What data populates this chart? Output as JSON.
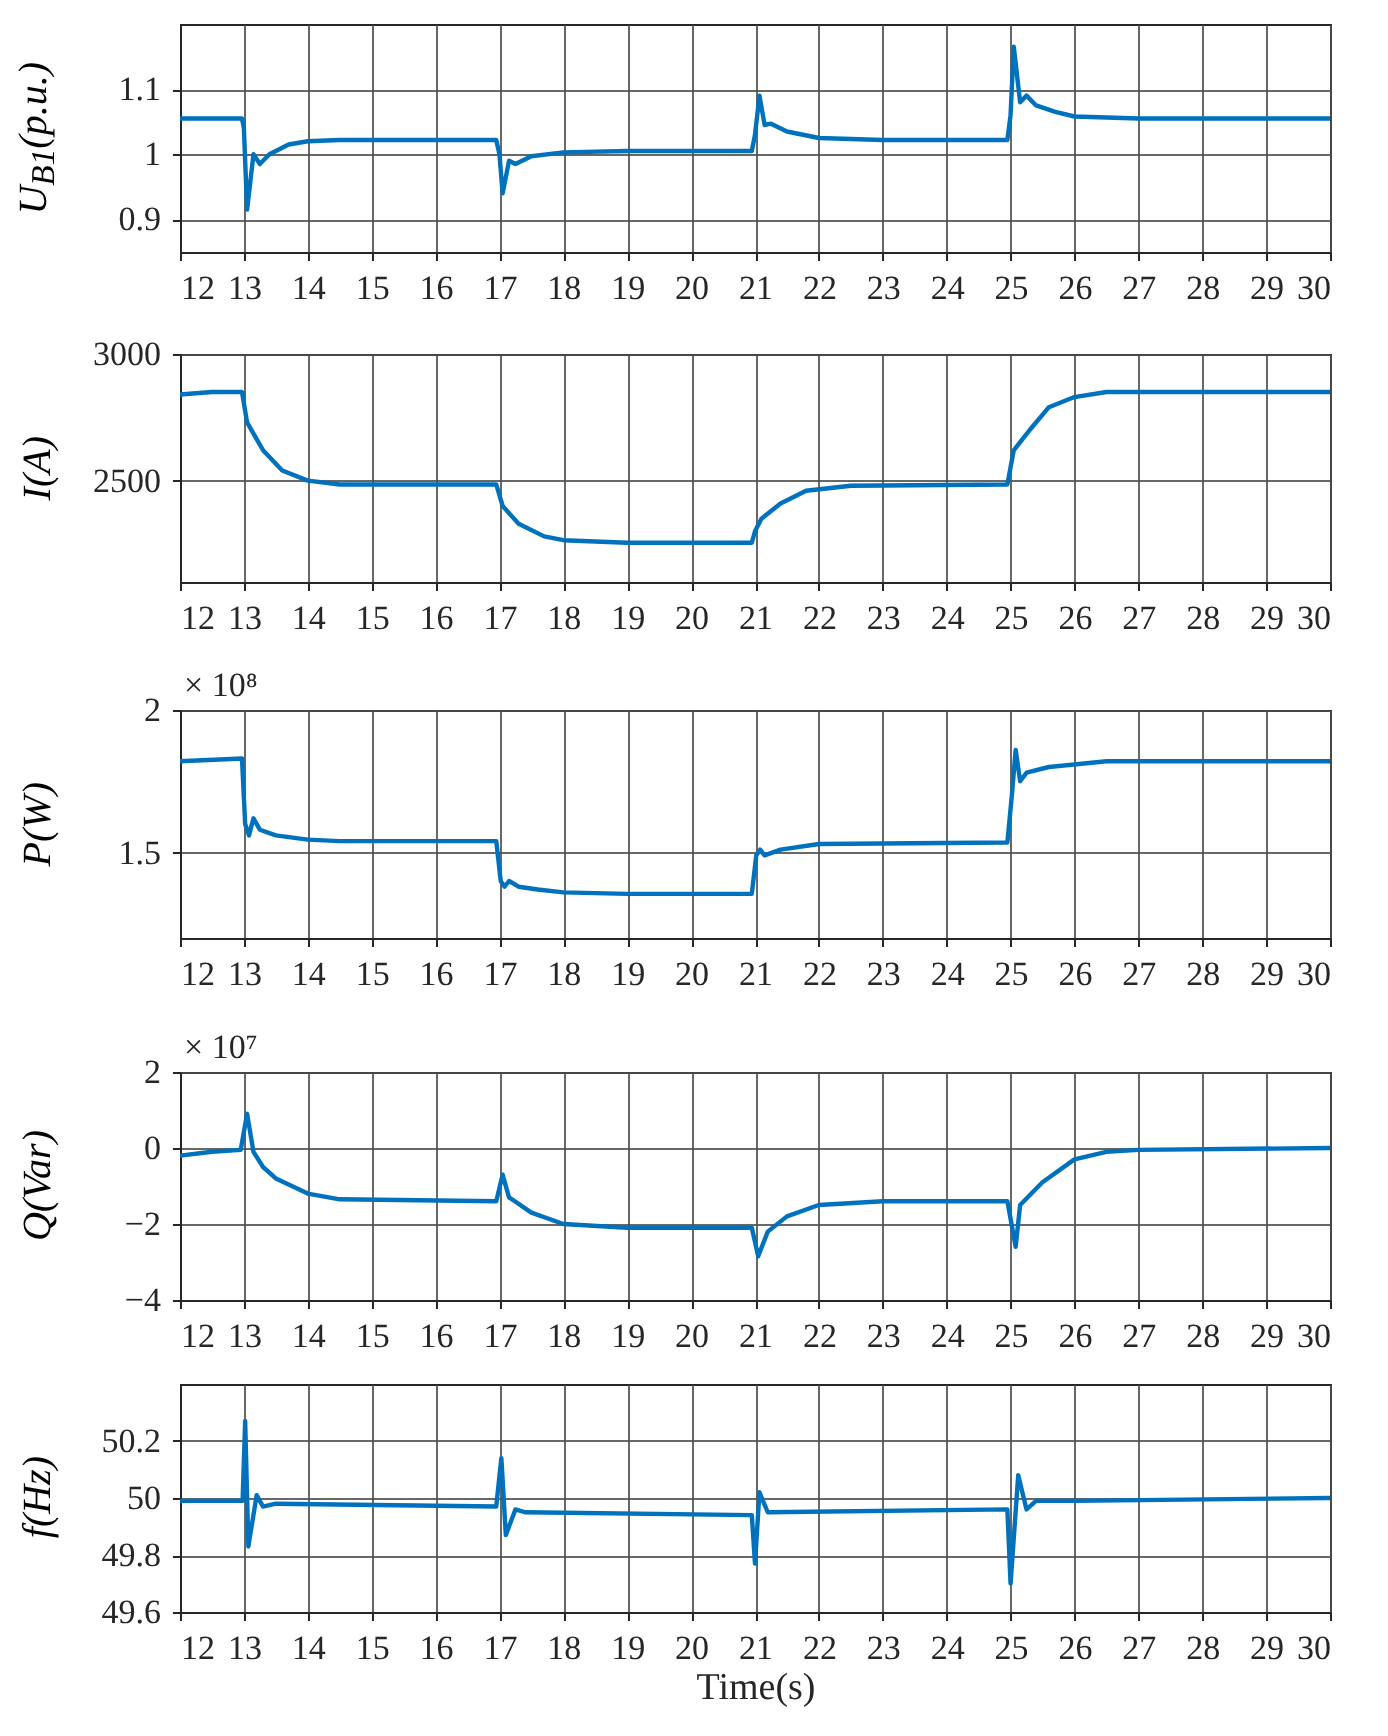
{
  "chart_data": [
    {
      "type": "line",
      "ylabel": "U$_{B1}$(p.u.)",
      "xlim": [
        12,
        30
      ],
      "xticks": [
        12,
        13,
        14,
        15,
        16,
        17,
        18,
        19,
        20,
        21,
        22,
        23,
        24,
        25,
        26,
        27,
        28,
        29,
        30
      ],
      "ylim": [
        0.85,
        1.2
      ],
      "yticks": [
        0.9,
        1,
        1.1
      ],
      "grid": true,
      "x": [
        12,
        12.97,
        13.0,
        13.05,
        13.15,
        13.25,
        13.4,
        13.7,
        14,
        14.5,
        16.95,
        17.0,
        17.05,
        17.15,
        17.25,
        17.5,
        18,
        19,
        20.95,
        21.0,
        21.07,
        21.15,
        21.25,
        21.5,
        22,
        23,
        24.95,
        25.0,
        25.05,
        25.15,
        25.25,
        25.4,
        25.7,
        26,
        27,
        30
      ],
      "series": [
        {
          "color": "#0072bd",
          "values": [
            1.055,
            1.055,
            1.04,
            0.915,
            1.0,
            0.985,
            1.0,
            1.015,
            1.02,
            1.022,
            1.022,
            1.0,
            0.94,
            0.99,
            0.985,
            0.997,
            1.003,
            1.005,
            1.005,
            1.03,
            1.09,
            1.045,
            1.047,
            1.035,
            1.025,
            1.022,
            1.022,
            1.06,
            1.165,
            1.08,
            1.09,
            1.075,
            1.065,
            1.058,
            1.055,
            1.055
          ]
        }
      ]
    },
    {
      "type": "line",
      "ylabel": "I(A)",
      "xlim": [
        12,
        30
      ],
      "xticks": [
        12,
        13,
        14,
        15,
        16,
        17,
        18,
        19,
        20,
        21,
        22,
        23,
        24,
        25,
        26,
        27,
        28,
        29,
        30
      ],
      "ylim": [
        2100,
        3000
      ],
      "yticks": [
        2500,
        3000
      ],
      "grid": true,
      "x": [
        12,
        12.5,
        12.97,
        13.05,
        13.3,
        13.6,
        14,
        14.5,
        16.95,
        17.05,
        17.3,
        17.7,
        18,
        19,
        20.95,
        21.0,
        21.1,
        21.4,
        21.8,
        22.5,
        24.95,
        25.05,
        25.3,
        25.6,
        26,
        26.5,
        30
      ],
      "series": [
        {
          "color": "#0072bd",
          "values": [
            2840,
            2850,
            2850,
            2730,
            2620,
            2540,
            2500,
            2485,
            2485,
            2400,
            2330,
            2280,
            2265,
            2255,
            2255,
            2300,
            2350,
            2410,
            2460,
            2480,
            2485,
            2620,
            2700,
            2790,
            2830,
            2850,
            2850
          ]
        }
      ]
    },
    {
      "type": "line",
      "ylabel": "P(W)",
      "annotations": [
        "× 10⁸"
      ],
      "xlim": [
        12,
        30
      ],
      "xticks": [
        12,
        13,
        14,
        15,
        16,
        17,
        18,
        19,
        20,
        21,
        22,
        23,
        24,
        25,
        26,
        27,
        28,
        29,
        30
      ],
      "ylim": [
        1.2,
        2
      ],
      "yticks": [
        1.5,
        2
      ],
      "grid": true,
      "x": [
        12,
        12.97,
        13.02,
        13.08,
        13.15,
        13.25,
        13.5,
        14,
        14.5,
        16.95,
        17.02,
        17.08,
        17.15,
        17.3,
        17.6,
        18,
        19,
        20.95,
        21.02,
        21.08,
        21.15,
        21.4,
        22,
        24.95,
        25.02,
        25.08,
        25.15,
        25.25,
        25.6,
        26.5,
        30
      ],
      "series": [
        {
          "color": "#0072bd",
          "values": [
            1.82,
            1.83,
            1.6,
            1.56,
            1.62,
            1.58,
            1.56,
            1.545,
            1.54,
            1.54,
            1.4,
            1.38,
            1.4,
            1.38,
            1.37,
            1.36,
            1.355,
            1.355,
            1.49,
            1.51,
            1.49,
            1.51,
            1.53,
            1.535,
            1.7,
            1.86,
            1.75,
            1.78,
            1.8,
            1.82,
            1.82
          ]
        }
      ]
    },
    {
      "type": "line",
      "ylabel": "Q(Var)",
      "annotations": [
        "× 10⁷"
      ],
      "xlim": [
        12,
        30
      ],
      "xticks": [
        12,
        13,
        14,
        15,
        16,
        17,
        18,
        19,
        20,
        21,
        22,
        23,
        24,
        25,
        26,
        27,
        28,
        29,
        30
      ],
      "ylim": [
        -4,
        2
      ],
      "yticks": [
        -4,
        -2,
        0,
        2
      ],
      "grid": true,
      "x": [
        12,
        12.5,
        12.95,
        13.05,
        13.15,
        13.3,
        13.5,
        14,
        14.5,
        16.95,
        17.05,
        17.15,
        17.5,
        18,
        19,
        20.95,
        21.05,
        21.2,
        21.5,
        22,
        23,
        24.95,
        25.08,
        25.15,
        25.5,
        26,
        26.5,
        27,
        30
      ],
      "series": [
        {
          "color": "#0072bd",
          "values": [
            -0.2,
            -0.1,
            -0.05,
            0.9,
            -0.1,
            -0.5,
            -0.8,
            -1.2,
            -1.35,
            -1.4,
            -0.7,
            -1.3,
            -1.7,
            -2.0,
            -2.1,
            -2.1,
            -2.85,
            -2.2,
            -1.8,
            -1.5,
            -1.4,
            -1.4,
            -2.6,
            -1.5,
            -0.9,
            -0.3,
            -0.1,
            -0.05,
            0
          ]
        }
      ]
    },
    {
      "type": "line",
      "ylabel": "f(Hz)",
      "xlabel": "Time(s)",
      "xlim": [
        12,
        30
      ],
      "xticks": [
        12,
        13,
        14,
        15,
        16,
        17,
        18,
        19,
        20,
        21,
        22,
        23,
        24,
        25,
        26,
        27,
        28,
        29,
        30
      ],
      "ylim": [
        49.6,
        50.4
      ],
      "yticks": [
        49.6,
        49.8,
        50,
        50.2
      ],
      "grid": true,
      "x": [
        12,
        12.98,
        13.02,
        13.07,
        13.2,
        13.3,
        13.5,
        16.95,
        17.03,
        17.1,
        17.25,
        17.4,
        20.95,
        21.0,
        21.07,
        21.2,
        24.95,
        25.0,
        25.12,
        25.25,
        25.4,
        26,
        30
      ],
      "series": [
        {
          "color": "#0072bd",
          "values": [
            49.99,
            49.99,
            50.27,
            49.83,
            50.01,
            49.97,
            49.98,
            49.97,
            50.14,
            49.87,
            49.96,
            49.95,
            49.94,
            49.77,
            50.02,
            49.95,
            49.96,
            49.7,
            50.08,
            49.96,
            49.99,
            49.99,
            50.0
          ]
        }
      ]
    }
  ]
}
